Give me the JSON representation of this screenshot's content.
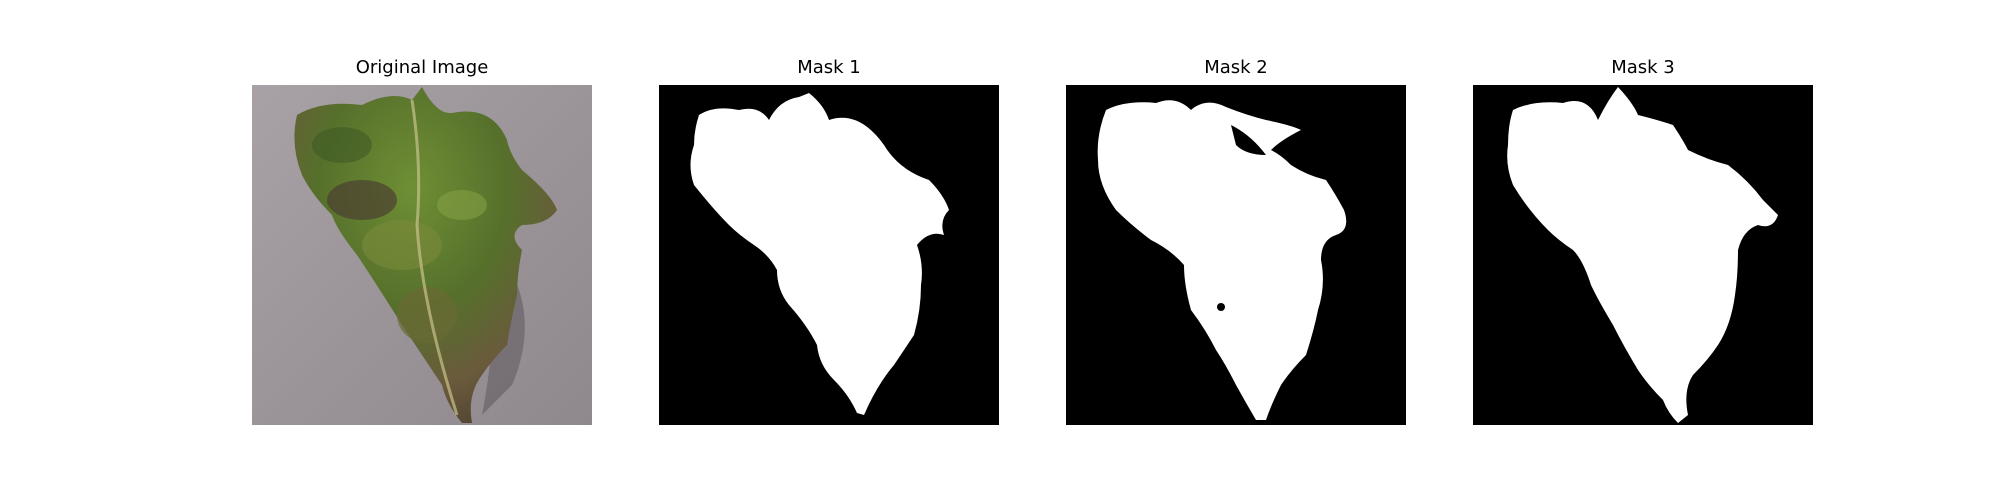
{
  "figure": {
    "panels": [
      {
        "title": "Original Image"
      },
      {
        "title": "Mask 1"
      },
      {
        "title": "Mask 2"
      },
      {
        "title": "Mask 3"
      }
    ]
  },
  "colors": {
    "background": "#ffffff",
    "mask_background": "#000000",
    "mask_foreground": "#ffffff",
    "ground": "#9a9498",
    "leaf_green": "#5d7a2c",
    "leaf_brown": "#5a4a33"
  }
}
